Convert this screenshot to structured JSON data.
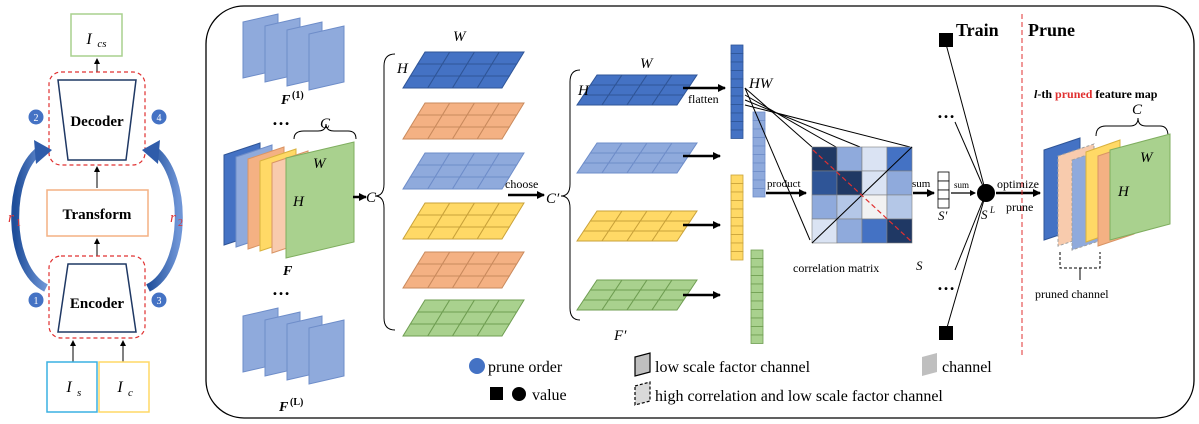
{
  "pipeline": {
    "output": "I",
    "output_sub": "cs",
    "decoder": "Decoder",
    "transform": "Transform",
    "encoder": "Encoder",
    "input_style": "I",
    "input_style_sub": "s",
    "input_content": "I",
    "input_content_sub": "c",
    "r1": "r",
    "r1_sub": "1",
    "r2": "r",
    "r2_sub": "2",
    "steps": [
      "1",
      "2",
      "3",
      "4"
    ]
  },
  "labels": {
    "F1": "F",
    "F1_sup": "(1)",
    "F": "F",
    "FL": "F",
    "FL_sup": "(L)",
    "Fprime": "F′",
    "dots": "…",
    "C": "C",
    "H": "H",
    "W": "W",
    "Cprime": "C′",
    "HW": "HW",
    "choose": "choose",
    "flatten": "flatten",
    "product": "product",
    "correlation_matrix": "correlation matrix",
    "S": "S",
    "sum": "sum",
    "Sprime": "S′",
    "SL": "S",
    "SL_sup": "L",
    "optimize": "optimize",
    "prune": "prune"
  },
  "right_panel": {
    "train": "Train",
    "prune": "Prune",
    "map_title_prefix": "l",
    "map_title_mid": "-th ",
    "map_title_highlight": "pruned",
    "map_title_suffix": " feature map",
    "pruned_channel": "pruned channel"
  },
  "legend": {
    "prune_order": "prune order",
    "low_scale": "low scale factor channel",
    "channel": "channel",
    "value": "value",
    "high_corr": "high correlation and low scale factor channel"
  },
  "colors": {
    "blue_dark": "#4472c4",
    "blue_light": "#8faadc",
    "peach": "#f4b183",
    "yellow": "#ffd966",
    "green": "#a9d18e",
    "red": "#ff0000",
    "step_blue": "#4472c4"
  }
}
